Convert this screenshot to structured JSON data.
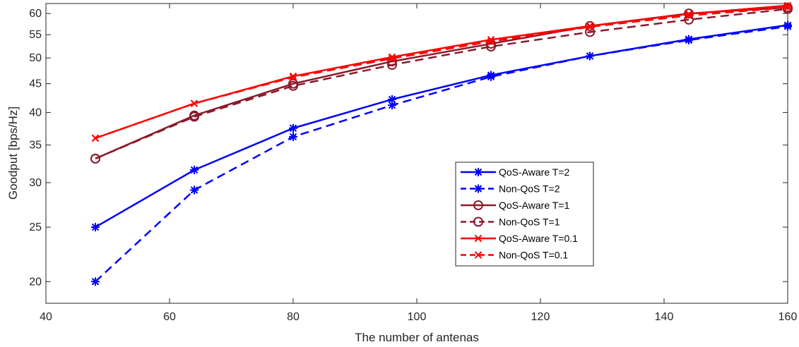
{
  "chart_data": {
    "type": "line",
    "title": "",
    "xlabel": "The number of antenas",
    "ylabel": "Goodput [bps/Hz]",
    "xlim": [
      40,
      160
    ],
    "ylim": [
      18.3,
      62.5
    ],
    "yscale": "log",
    "grid": false,
    "legend_position": "center-right",
    "x_ticks": [
      40,
      60,
      80,
      100,
      120,
      140,
      160
    ],
    "y_ticks": [
      20,
      25,
      30,
      35,
      40,
      45,
      50,
      55,
      60
    ],
    "x": [
      48,
      64,
      80,
      96,
      112,
      128,
      144,
      160
    ],
    "series": [
      {
        "name": "QoS-Aware T=2",
        "color": "#0000ff",
        "dash": "solid",
        "marker": "asterisk",
        "values": [
          25.0,
          31.6,
          37.5,
          42.2,
          46.6,
          50.4,
          54.0,
          57.2
        ]
      },
      {
        "name": "Non-QoS T=2",
        "color": "#0000ff",
        "dash": "dashed",
        "marker": "asterisk",
        "values": [
          20.0,
          29.1,
          36.2,
          41.2,
          46.3,
          50.4,
          53.8,
          56.9
        ]
      },
      {
        "name": "QoS-Aware T=1",
        "color": "#8b1a2b",
        "dash": "solid",
        "marker": "circle",
        "values": [
          33.1,
          39.5,
          45.0,
          49.3,
          53.0,
          57.0,
          60.0,
          61.5
        ]
      },
      {
        "name": "Non-QoS T=1",
        "color": "#8b1a2b",
        "dash": "dashed",
        "marker": "circle",
        "values": [
          33.1,
          39.3,
          44.6,
          48.6,
          52.4,
          55.6,
          58.5,
          61.1
        ]
      },
      {
        "name": "QoS-Aware T=0.1",
        "color": "#ff0000",
        "dash": "solid",
        "marker": "x",
        "values": [
          36.0,
          41.5,
          46.4,
          50.2,
          53.9,
          57.0,
          59.9,
          62.0
        ]
      },
      {
        "name": "Non-QoS T=0.1",
        "color": "#ff0000",
        "dash": "dashed",
        "marker": "x",
        "values": [
          36.0,
          41.5,
          46.2,
          49.9,
          53.5,
          56.8,
          59.5,
          61.5
        ]
      }
    ]
  }
}
